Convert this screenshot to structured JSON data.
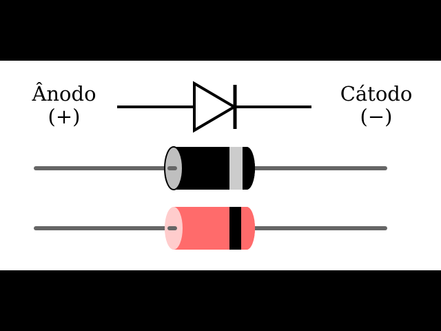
{
  "labels": {
    "anode_name": "Ânodo",
    "anode_sign": "(+)",
    "cathode_name": "Cátodo",
    "cathode_sign": "(−)"
  },
  "colors": {
    "letterbox": "#000000",
    "panel": "#ffffff",
    "symbol": "#000000",
    "lead_wire": "#666666",
    "body_black": "#000000",
    "band_black_diode": "#cccccc",
    "end_cap_black_diode": "#bfbfbf",
    "body_red": "#ff6b6b",
    "band_red_diode": "#000000",
    "end_cap_red_diode": "#ffcccc"
  }
}
